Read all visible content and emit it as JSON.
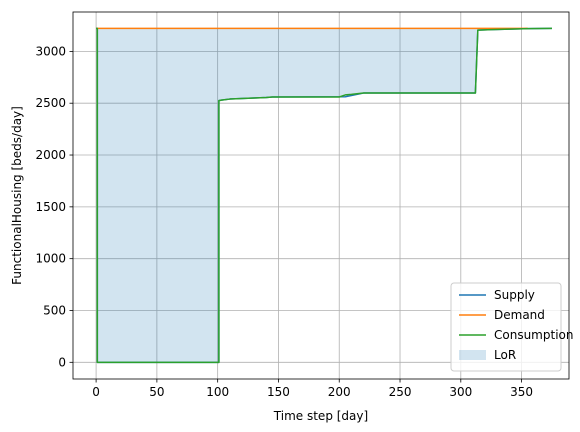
{
  "chart_data": {
    "type": "line",
    "xlabel": "Time step [day]",
    "ylabel": "FunctionalHousing [beds/day]",
    "xlim": [
      -19,
      389
    ],
    "ylim": [
      -161,
      3380
    ],
    "xticks": [
      0,
      50,
      100,
      150,
      200,
      250,
      300,
      350
    ],
    "yticks": [
      0,
      500,
      1000,
      1500,
      2000,
      2500,
      3000
    ],
    "grid": true,
    "legend_position": "lower right",
    "series": [
      {
        "name": "Supply",
        "color": "#1f77b4",
        "kind": "line",
        "x": [
          0,
          1,
          1,
          101,
          101,
          103,
          110,
          120,
          130,
          140,
          145,
          205,
          220,
          312,
          314,
          325,
          340,
          355,
          375
        ],
        "y": [
          3222,
          3222,
          0,
          0,
          2525,
          2530,
          2540,
          2545,
          2550,
          2555,
          2560,
          2562,
          2598,
          2598,
          3205,
          3210,
          3215,
          3220,
          3222
        ]
      },
      {
        "name": "Demand",
        "color": "#ff7f0e",
        "kind": "line",
        "x": [
          0,
          355
        ],
        "y": [
          3222,
          3222
        ]
      },
      {
        "name": "Consumption",
        "color": "#2ca02c",
        "kind": "line",
        "x": [
          0,
          1,
          1,
          101,
          101,
          103,
          110,
          120,
          130,
          140,
          145,
          200,
          205,
          210,
          220,
          312,
          314,
          325,
          340,
          355,
          375
        ],
        "y": [
          3222,
          3222,
          0,
          0,
          2525,
          2530,
          2540,
          2545,
          2550,
          2555,
          2560,
          2560,
          2580,
          2585,
          2598,
          2598,
          3205,
          3210,
          3215,
          3220,
          3222
        ]
      },
      {
        "name": "LoR",
        "color": "#1f77b4",
        "kind": "fill_between",
        "fill_opacity": 0.2,
        "upper_series": "Demand",
        "lower_series": "Consumption"
      }
    ]
  }
}
